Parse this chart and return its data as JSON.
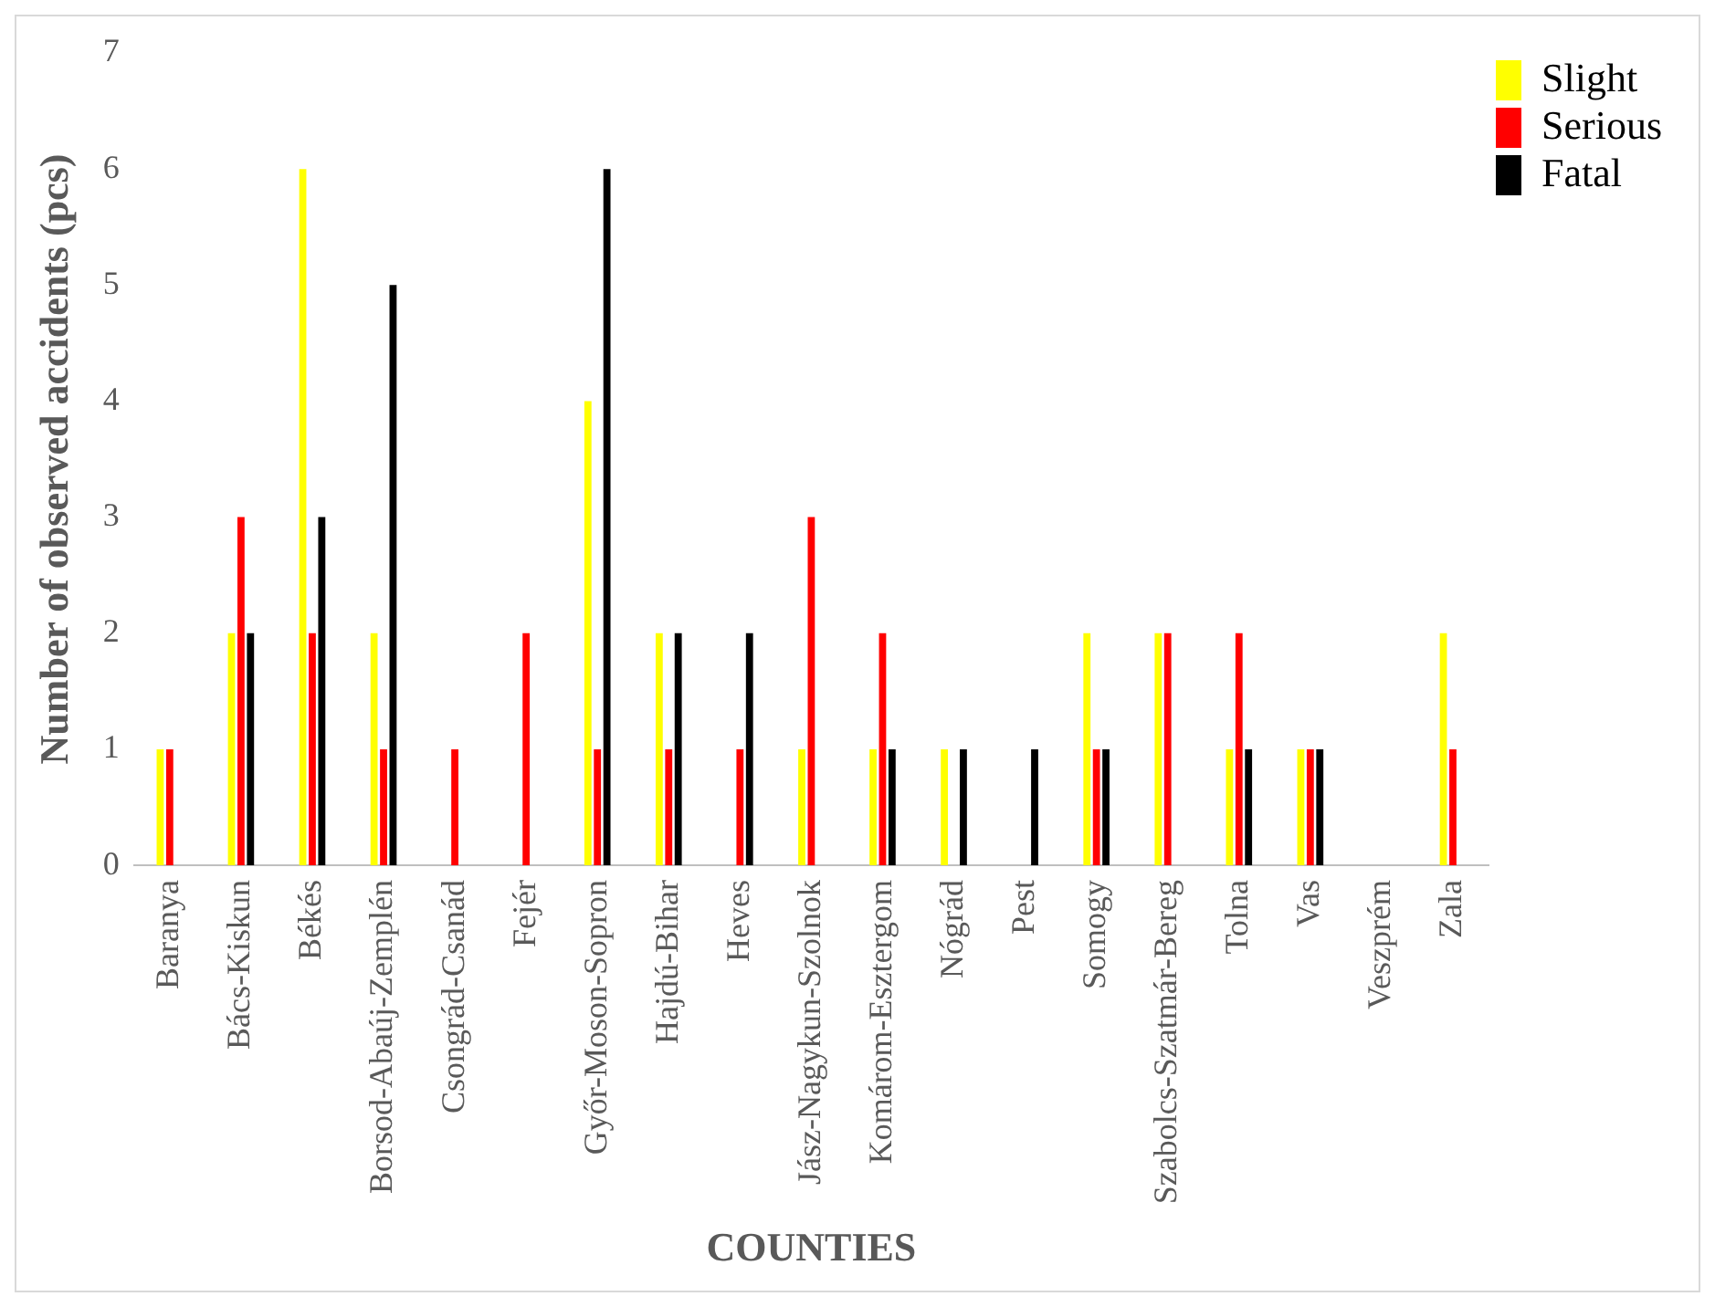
{
  "chart_data": {
    "type": "bar",
    "xlabel": "COUNTIES",
    "ylabel": "Number of observed accidents (pcs)",
    "categories": [
      "Baranya",
      "Bács-Kiskun",
      "Békés",
      "Borsod-Abaúj-Zemplén",
      "Csongrád-Csanád",
      "Fejér",
      "Győr-Moson-Sopron",
      "Hajdú-Bihar",
      "Heves",
      "Jász-Nagykun-Szolnok",
      "Komárom-Esztergom",
      "Nógrád",
      "Pest",
      "Somogy",
      "Szabolcs-Szatmár-Bereg",
      "Tolna",
      "Vas",
      "Veszprém",
      "Zala"
    ],
    "series": [
      {
        "name": "Slight",
        "color": "#ffff00",
        "values": [
          1,
          2,
          6,
          2,
          0,
          0,
          4,
          2,
          0,
          1,
          1,
          1,
          0,
          2,
          2,
          1,
          1,
          0,
          2
        ]
      },
      {
        "name": "Serious",
        "color": "#ff0000",
        "values": [
          1,
          3,
          2,
          1,
          1,
          2,
          1,
          1,
          1,
          3,
          2,
          0,
          0,
          1,
          2,
          2,
          1,
          0,
          1
        ]
      },
      {
        "name": "Fatal",
        "color": "#000000",
        "values": [
          0,
          2,
          3,
          5,
          0,
          0,
          6,
          2,
          2,
          0,
          1,
          1,
          1,
          1,
          0,
          1,
          1,
          0,
          0
        ]
      }
    ],
    "ylim": [
      0,
      7
    ],
    "yticks": [
      0,
      1,
      2,
      3,
      4,
      5,
      6,
      7
    ],
    "grid": false,
    "legend": "top right"
  }
}
